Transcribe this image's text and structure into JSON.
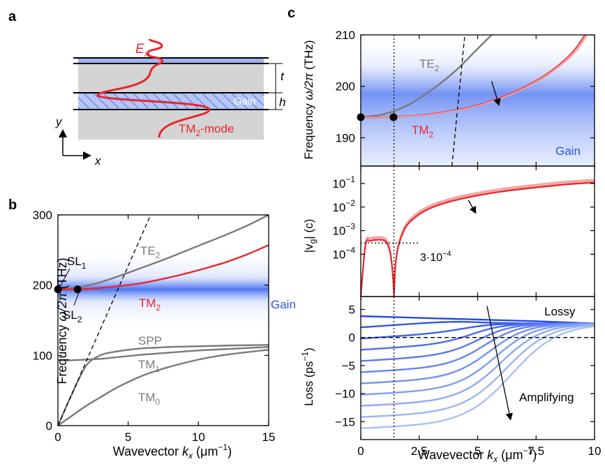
{
  "figure": {
    "panel_labels": [
      "a",
      "b",
      "c"
    ]
  },
  "panel_a": {
    "field_label": "E",
    "field_label_sub": "x",
    "dim_t": "t",
    "dim_h": "h",
    "gain_label": "Gain",
    "mode_label_pre": "TM",
    "mode_label_sub": "2",
    "mode_label_post": "-mode",
    "axis_y": "y",
    "axis_x": "x"
  },
  "colors": {
    "red": "#e8262b",
    "gray": "#7a7a7a",
    "blue": "#2f55e0",
    "gain_band": "#3a66f0",
    "black": "#000000"
  },
  "chart_data": [
    {
      "id": "b",
      "type": "line",
      "xlabel_pre": "Wavevector ",
      "xlabel_var": "k",
      "xlabel_sub": "x",
      "xlabel_post": " (μm",
      "xlabel_sup": "−1",
      "xlabel_end": ")",
      "ylabel_pre": "Frequency ",
      "ylabel_var": "ω/2π",
      "ylabel_post": " (THz)",
      "xlim": [
        0,
        15
      ],
      "ylim": [
        0,
        300
      ],
      "xticks": [
        0,
        5,
        10,
        15
      ],
      "yticks": [
        0,
        100,
        200,
        300
      ],
      "gain_band_center": 194,
      "series": [
        {
          "name": "TE",
          "sub": "2",
          "color": "gray",
          "x": [
            0,
            1.5,
            3,
            4.5,
            6,
            7.5,
            9,
            10.5,
            12,
            13.5,
            15
          ],
          "y": [
            194,
            197,
            204,
            214,
            225,
            236,
            248,
            260,
            272,
            285,
            300
          ]
        },
        {
          "name": "TM",
          "sub": "2",
          "color": "red",
          "x": [
            0,
            1.5,
            3,
            4.5,
            6,
            7.5,
            9,
            10.5,
            12,
            13.5,
            15
          ],
          "y": [
            194,
            194,
            196,
            199,
            203,
            209,
            216,
            224,
            233,
            244,
            257
          ]
        },
        {
          "name": "SPP",
          "sub": "",
          "color": "gray",
          "x": [
            0,
            1,
            2,
            3,
            4,
            5,
            6,
            7,
            8,
            10,
            12,
            15
          ],
          "y": [
            0,
            45,
            85,
            100,
            105,
            108,
            110,
            111,
            112,
            113,
            114,
            115
          ]
        },
        {
          "name": "TM",
          "sub": "1",
          "color": "gray",
          "x": [
            0,
            1,
            2,
            3,
            4,
            5,
            6,
            8,
            10,
            12,
            15
          ],
          "y": [
            93,
            93,
            94,
            95,
            97,
            99,
            101,
            104,
            107,
            109,
            112
          ]
        },
        {
          "name": "TM",
          "sub": "0",
          "color": "gray",
          "x": [
            0,
            1,
            2,
            3,
            4,
            5,
            6,
            7,
            8,
            10,
            12,
            15
          ],
          "y": [
            0,
            14,
            28,
            40,
            52,
            62,
            71,
            78,
            84,
            94,
            101,
            108
          ]
        },
        {
          "name": "",
          "sub": "",
          "color": "black",
          "dashed": true,
          "x": [
            0,
            6.6
          ],
          "y": [
            0,
            300
          ]
        }
      ],
      "points": [
        {
          "label": "SL",
          "sub": "1",
          "x": 0,
          "y": 194
        },
        {
          "label": "SL",
          "sub": "2",
          "x": 1.4,
          "y": 194
        }
      ],
      "gain_label": "Gain"
    },
    {
      "id": "c1",
      "type": "line",
      "ylabel_pre": "Frequency ",
      "ylabel_var": "ω/2π",
      "ylabel_post": " (THz)",
      "xlim": [
        0,
        10
      ],
      "ylim": [
        184.5,
        210
      ],
      "yticks": [
        190,
        200,
        210
      ],
      "gain_band_center": 194,
      "series": [
        {
          "name": "TE",
          "sub": "2",
          "color": "gray",
          "x": [
            0,
            1,
            2,
            3,
            4,
            5,
            5.6
          ],
          "y": [
            194,
            194.6,
            196.3,
            199.2,
            202.8,
            207.3,
            210
          ]
        },
        {
          "name": "TM",
          "sub": "2",
          "color": "red",
          "x": [
            0,
            1,
            2,
            3,
            4,
            5,
            6,
            7,
            8,
            9,
            9.6
          ],
          "y": [
            194,
            194,
            194.2,
            194.6,
            195.3,
            196.3,
            197.8,
            199.8,
            202.5,
            206.3,
            210
          ]
        },
        {
          "name": "",
          "sub": "",
          "color": "black",
          "dashed": true,
          "x": [
            3.9,
            4.45
          ],
          "y": [
            184.5,
            210
          ]
        }
      ],
      "points": [
        {
          "x": 0,
          "y": 194
        },
        {
          "x": 1.4,
          "y": 194
        }
      ],
      "gain_label": "Gain"
    },
    {
      "id": "c2",
      "type": "line",
      "ylabel_pre": "|v",
      "ylabel_sub": "g",
      "ylabel_post": "| (c)",
      "xlim": [
        0,
        10
      ],
      "ylog": true,
      "ylim": [
        1.6e-06,
        0.55
      ],
      "yticks": [
        {
          "base": "10",
          "exp": "−4",
          "value": 0.0001
        },
        {
          "base": "10",
          "exp": "−3",
          "value": 0.001
        },
        {
          "base": "10",
          "exp": "−2",
          "value": 0.01
        },
        {
          "base": "10",
          "exp": "−1",
          "value": 0.1
        }
      ],
      "series": [
        {
          "name": "",
          "color": "red",
          "x": [
            0,
            0.2,
            0.4,
            0.6,
            0.8,
            1.0,
            1.15,
            1.28,
            1.38,
            1.42
          ],
          "y": [
            1.6e-06,
            0.00024,
            0.00036,
            0.0004,
            0.00041,
            0.00038,
            0.00026,
            9e-05,
            1e-05,
            1.6e-06
          ]
        },
        {
          "name": "",
          "color": "red",
          "x": [
            1.42,
            1.48,
            1.6,
            1.8,
            2.0,
            2.3,
            2.7,
            3.2,
            4,
            5,
            6,
            7,
            8,
            9,
            10
          ],
          "y": [
            1.6e-06,
            3e-05,
            0.0002,
            0.0008,
            0.0018,
            0.0035,
            0.0065,
            0.011,
            0.019,
            0.031,
            0.045,
            0.06,
            0.077,
            0.095,
            0.11
          ]
        }
      ],
      "annotation": {
        "text": "3·10",
        "exp": "−4",
        "value": 0.0003
      }
    },
    {
      "id": "c3",
      "type": "line",
      "xlabel_pre": "Wavevector ",
      "xlabel_var": "k",
      "xlabel_sub": "x",
      "xlabel_post": " (μm",
      "xlabel_sup": "−1",
      "xlabel_end": ")",
      "ylabel_pre": "Loss (ps",
      "ylabel_sup": "−1",
      "ylabel_post": ")",
      "xlim": [
        0,
        10
      ],
      "ylim": [
        -18.2,
        7.3
      ],
      "xticks": [
        {
          "label": "0",
          "value": 0
        },
        {
          "label": "2.5",
          "value": 2.5
        },
        {
          "label": "5",
          "value": 5
        },
        {
          "label": "7.5",
          "value": 7.5
        },
        {
          "label": "10",
          "value": 10
        }
      ],
      "yticks": [
        -15,
        -10,
        -5,
        0,
        5
      ],
      "baseline": 0,
      "loss_curves": [
        3.8,
        1.8,
        -0.2,
        -2.2,
        -4.2,
        -6.2,
        -8.2,
        -10.2,
        -12.2,
        -14.2,
        -16.2
      ],
      "loss_end": 2.5,
      "label_lossy": "Lossy",
      "label_amplifying": "Amplifying"
    }
  ],
  "shared": {
    "vline_x": 1.42
  }
}
